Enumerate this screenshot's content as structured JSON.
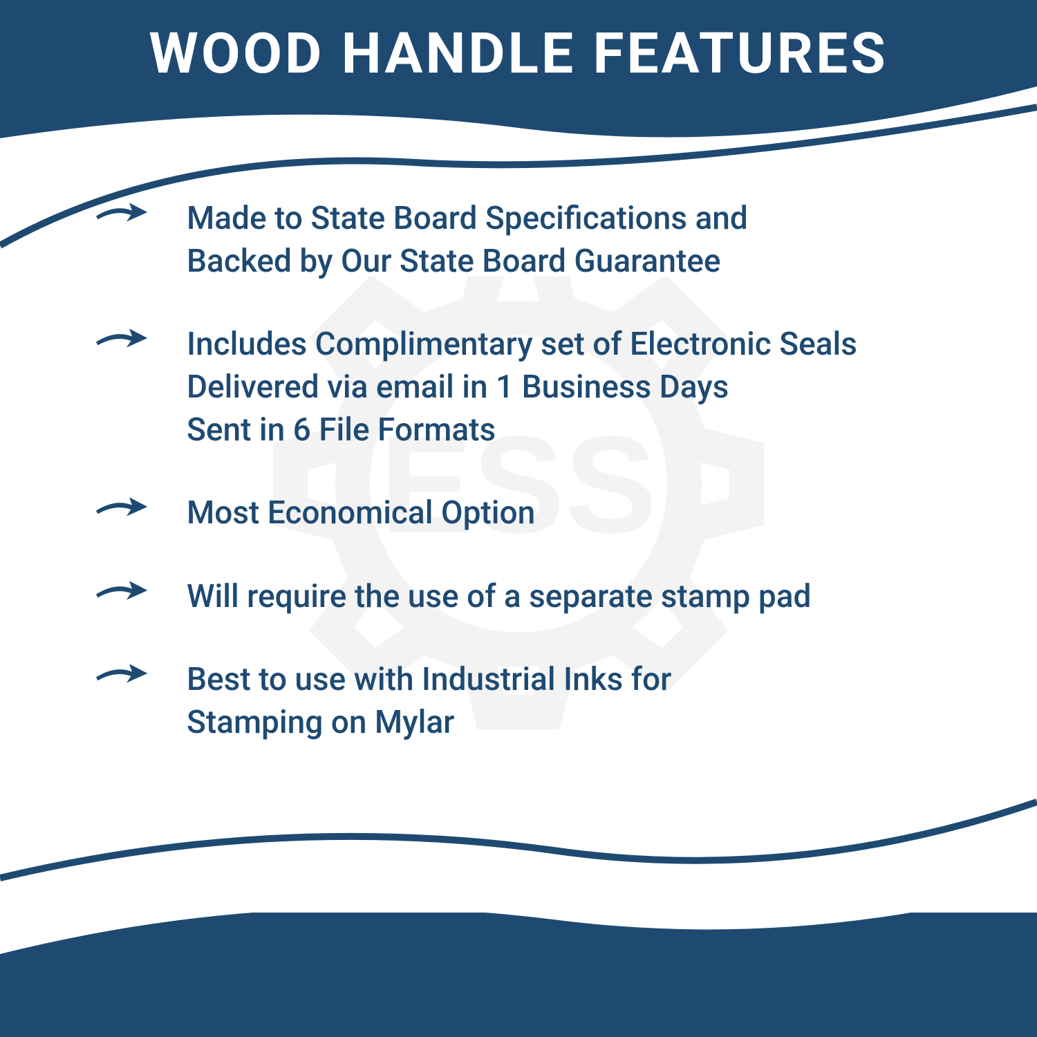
{
  "title": "WOOD HANDLE FEATURES",
  "colors": {
    "primary": "#1e4a72",
    "background": "#ffffff",
    "watermark": "#cccccc"
  },
  "typography": {
    "title_fontsize": 82,
    "title_weight": 700,
    "body_fontsize": 46,
    "body_weight": 500
  },
  "watermark_text": "ESS",
  "features": [
    {
      "lines": [
        "Made to State Board Specifications and",
        "Backed by Our State Board Guarantee"
      ]
    },
    {
      "lines": [
        "Includes Complimentary set of Electronic Seals",
        "Delivered via email in 1 Business Days",
        "Sent in 6 File Formats"
      ]
    },
    {
      "lines": [
        "Most Economical Option"
      ]
    },
    {
      "lines": [
        "Will require the use of a separate stamp pad"
      ]
    },
    {
      "lines": [
        "Best to use with Industrial Inks for",
        "Stamping on Mylar"
      ]
    }
  ]
}
